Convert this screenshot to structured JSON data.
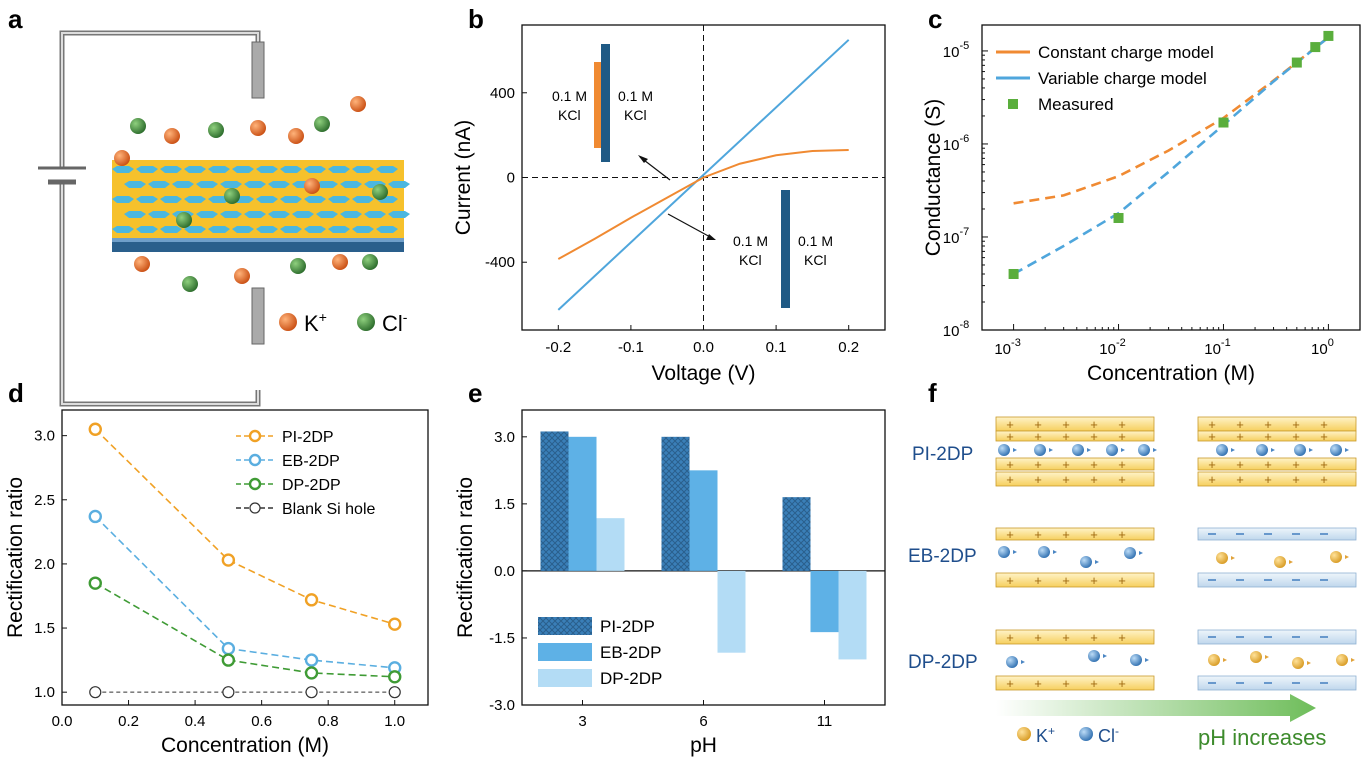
{
  "panels": {
    "a": {
      "letter": "a",
      "legend": [
        {
          "ion": "K",
          "charge": "+",
          "color": "#e0611f"
        },
        {
          "ion": "Cl",
          "charge": "-",
          "color": "#3c8a3c"
        }
      ]
    },
    "b": {
      "letter": "b",
      "inset_top": {
        "left": "0.1 M KCl",
        "right": "0.1 M KCl"
      },
      "inset_bottom": {
        "left": "0.1 M KCl",
        "right": "0.1 M KCl"
      }
    },
    "c": {
      "letter": "c"
    },
    "d": {
      "letter": "d"
    },
    "e": {
      "letter": "e"
    },
    "f": {
      "letter": "f",
      "row_labels": [
        "PI-2DP",
        "EB-2DP",
        "DP-2DP"
      ],
      "legend": [
        {
          "ion": "K",
          "charge": "+",
          "color": "#e8b54a"
        },
        {
          "ion": "Cl",
          "charge": "-",
          "color": "#5b93cf"
        }
      ],
      "arrow_label": "pH increases"
    }
  },
  "colors": {
    "orange": "#f08a32",
    "blue": "#4fa6dc",
    "green": "#3f9b35",
    "darkblue": "#1f5a85",
    "yellow": "#f5be2a"
  },
  "chart_data": [
    {
      "id": "b",
      "type": "line",
      "xlabel": "Voltage (V)",
      "ylabel": "Current (nA)",
      "xlim": [
        -0.25,
        0.25
      ],
      "ylim": [
        -720,
        720
      ],
      "xticks": [
        -0.2,
        -0.1,
        0.0,
        0.1,
        0.2
      ],
      "xtick_labels": [
        "-0.2",
        "-0.1",
        "0.0",
        "0.1",
        "0.2"
      ],
      "yticks": [
        -400,
        0,
        400
      ],
      "yticks_labels": [
        "-400",
        "0",
        "400"
      ],
      "series": [
        {
          "color": "#4fa6dc",
          "x": [
            -0.2,
            0.2
          ],
          "y": [
            -625,
            650
          ]
        },
        {
          "color": "#f08a32",
          "x": [
            -0.2,
            -0.15,
            -0.1,
            -0.05,
            0.0,
            0.05,
            0.1,
            0.15,
            0.2
          ],
          "y": [
            -385,
            -290,
            -190,
            -95,
            0,
            65,
            105,
            125,
            130
          ]
        }
      ]
    },
    {
      "id": "c",
      "type": "line",
      "xlabel": "Concentration (M)",
      "ylabel": "Conductance (S)",
      "xscale": "log",
      "yscale": "log",
      "xlim": [
        0.0005,
        2
      ],
      "ylim": [
        1e-08,
        1.9e-05
      ],
      "xticks": [
        0.001,
        0.01,
        0.1,
        1
      ],
      "xtick_exponents": [
        "-3",
        "-2",
        "-1",
        "0"
      ],
      "yticks": [
        1e-08,
        1e-07,
        1e-06,
        1e-05
      ],
      "ytick_exponents": [
        "-8",
        "-7",
        "-6",
        "-5"
      ],
      "legend": [
        "Constant charge model",
        "Variable charge model",
        "Measured"
      ],
      "legend_placement": "top-left",
      "series": [
        {
          "name": "Constant charge model",
          "color": "#f08a32",
          "style": "dashed",
          "x": [
            0.001,
            0.003,
            0.01,
            0.03,
            0.1,
            0.3,
            1
          ],
          "y": [
            2.3e-07,
            2.8e-07,
            4.5e-07,
            8.5e-07,
            1.9e-06,
            4.8e-06,
            1.4e-05
          ]
        },
        {
          "name": "Variable charge model",
          "color": "#4fa6dc",
          "style": "dashed",
          "x": [
            0.001,
            0.003,
            0.01,
            0.03,
            0.1,
            0.3,
            1
          ],
          "y": [
            4e-08,
            8e-08,
            1.8e-07,
            5e-07,
            1.6e-06,
            4.7e-06,
            1.4e-05
          ]
        },
        {
          "name": "Measured",
          "color": "#5aae3c",
          "style": "markers",
          "x": [
            0.001,
            0.01,
            0.1,
            0.5,
            0.75,
            1
          ],
          "y": [
            4e-08,
            1.6e-07,
            1.7e-06,
            7.5e-06,
            1.1e-05,
            1.45e-05
          ]
        }
      ]
    },
    {
      "id": "d",
      "type": "line",
      "xlabel": "Concentration (M)",
      "ylabel": "Rectification ratio",
      "xlim": [
        0.0,
        1.1
      ],
      "ylim": [
        0.9,
        3.2
      ],
      "xticks": [
        0.0,
        0.2,
        0.4,
        0.6,
        0.8,
        1.0
      ],
      "xtick_labels": [
        "0.0",
        "0.2",
        "0.4",
        "0.6",
        "0.8",
        "1.0"
      ],
      "yticks": [
        1.0,
        1.5,
        2.0,
        2.5,
        3.0
      ],
      "ytick_labels": [
        "1.0",
        "1.5",
        "2.0",
        "2.5",
        "3.0"
      ],
      "legend_placement": "top-right",
      "series": [
        {
          "name": "PI-2DP",
          "color": "#f0a125",
          "x": [
            0.1,
            0.5,
            0.75,
            1.0
          ],
          "y": [
            3.05,
            2.03,
            1.72,
            1.53
          ]
        },
        {
          "name": "EB-2DP",
          "color": "#5aaee0",
          "x": [
            0.1,
            0.5,
            0.75,
            1.0
          ],
          "y": [
            2.37,
            1.34,
            1.25,
            1.19
          ]
        },
        {
          "name": "DP-2DP",
          "color": "#3f9b35",
          "x": [
            0.1,
            0.5,
            0.75,
            1.0
          ],
          "y": [
            1.85,
            1.25,
            1.15,
            1.12
          ]
        },
        {
          "name": "Blank Si hole",
          "color": "#333333",
          "x": [
            0.1,
            0.5,
            0.75,
            1.0
          ],
          "y": [
            1.0,
            1.0,
            1.0,
            1.0
          ]
        }
      ]
    },
    {
      "id": "e",
      "type": "bar",
      "xlabel": "pH",
      "ylabel": "Rectification ratio",
      "categories": [
        "3",
        "6",
        "11"
      ],
      "ylim": [
        -3.0,
        3.6
      ],
      "yticks": [
        -3.0,
        -1.5,
        0.0,
        1.5,
        3.0
      ],
      "ytick_labels": [
        "-3.0",
        "-1.5",
        "0.0",
        "1.5",
        "3.0"
      ],
      "legend_placement": "bottom-left",
      "series": [
        {
          "name": "PI-2DP",
          "color": "#3a7fb8",
          "pattern": "crosshatch",
          "values": [
            3.12,
            3.0,
            1.65
          ]
        },
        {
          "name": "EB-2DP",
          "color": "#5eb1e6",
          "values": [
            3.0,
            2.25,
            -1.37
          ]
        },
        {
          "name": "DP-2DP",
          "color": "#b3dcf5",
          "values": [
            1.18,
            -1.83,
            -1.98
          ]
        }
      ]
    }
  ]
}
